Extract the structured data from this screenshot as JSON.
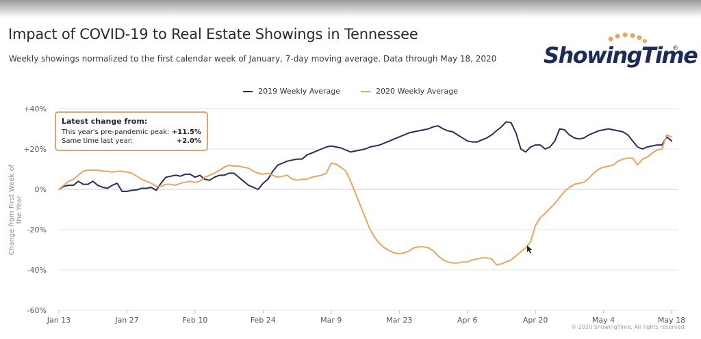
{
  "header": {
    "title": "Impact of COVID-19 to Real Estate Showings in Tennessee",
    "subtitle": "Weekly showings normalized to the first calendar week of January, 7-day moving average. Data through May 18, 2020",
    "logo_text": "ShowingTime",
    "logo_mark": "®"
  },
  "annotation": {
    "heading": "Latest change from:",
    "rows": [
      {
        "label": "This year's pre-pandemic peak:",
        "value": "+11.5%"
      },
      {
        "label": "Same time last year:",
        "value": "+2.0%"
      }
    ]
  },
  "footer": {
    "copyright": "© 2020 ShowingTime. All rights reserved."
  },
  "colors": {
    "series2019": "#2b2a5c",
    "series2020": "#e8a462",
    "grid": "#e3e3e3",
    "annotation_border": "#e2a36a"
  },
  "chart_data": {
    "type": "line",
    "title": "Impact of COVID-19 to Real Estate Showings in Tennessee",
    "xlabel": "",
    "ylabel": "Change from First Week of the Year",
    "ylim": [
      -60,
      40
    ],
    "y_ticks": [
      40,
      20,
      0,
      -20,
      -40,
      -60
    ],
    "y_tick_labels": [
      "+40%",
      "+20%",
      "0%",
      "-20%",
      "-40%",
      "-60%"
    ],
    "x_ticks": [
      "Jan 13",
      "Jan 27",
      "Feb 10",
      "Feb 24",
      "Mar 9",
      "Mar 23",
      "Apr 6",
      "Apr 20",
      "May 4",
      "May 18"
    ],
    "x_tick_days": [
      0,
      14,
      28,
      42,
      56,
      70,
      84,
      98,
      112,
      126
    ],
    "x_range_days": [
      0,
      126
    ],
    "grid": true,
    "legend_position": "top-center",
    "series": [
      {
        "name": "2019 Weekly Average",
        "points": [
          [
            0,
            0
          ],
          [
            1,
            1.5
          ],
          [
            2,
            2
          ],
          [
            3,
            2
          ],
          [
            4,
            4
          ],
          [
            5,
            2.5
          ],
          [
            6,
            2.5
          ],
          [
            7,
            4
          ],
          [
            8,
            2
          ],
          [
            9,
            1
          ],
          [
            10,
            0.5
          ],
          [
            11,
            2
          ],
          [
            12,
            3
          ],
          [
            13,
            -1
          ],
          [
            14,
            -1
          ],
          [
            15,
            -0.5
          ],
          [
            16,
            -0.3
          ],
          [
            17,
            0.5
          ],
          [
            18,
            0.5
          ],
          [
            19,
            1
          ],
          [
            20,
            -0.5
          ],
          [
            21,
            3
          ],
          [
            22,
            6
          ],
          [
            23,
            6.5
          ],
          [
            24,
            7
          ],
          [
            25,
            6.5
          ],
          [
            26,
            7.5
          ],
          [
            27,
            7.5
          ],
          [
            28,
            6
          ],
          [
            29,
            7
          ],
          [
            30,
            5
          ],
          [
            31,
            4.5
          ],
          [
            32,
            6
          ],
          [
            33,
            7
          ],
          [
            34,
            7
          ],
          [
            35,
            8
          ],
          [
            36,
            8
          ],
          [
            37,
            6
          ],
          [
            38,
            4
          ],
          [
            39,
            2
          ],
          [
            40,
            1
          ],
          [
            41,
            0
          ],
          [
            42,
            3
          ],
          [
            43,
            5
          ],
          [
            44,
            9
          ],
          [
            45,
            12
          ],
          [
            46,
            13
          ],
          [
            47,
            14
          ],
          [
            48,
            14.5
          ],
          [
            49,
            15
          ],
          [
            50,
            15
          ],
          [
            51,
            17
          ],
          [
            52,
            18
          ],
          [
            53,
            19
          ],
          [
            54,
            20
          ],
          [
            55,
            21
          ],
          [
            56,
            21.5
          ],
          [
            57,
            21
          ],
          [
            58,
            20.5
          ],
          [
            59,
            19.5
          ],
          [
            60,
            18.5
          ],
          [
            61,
            19
          ],
          [
            62,
            19.5
          ],
          [
            63,
            20
          ],
          [
            64,
            21
          ],
          [
            65,
            21.5
          ],
          [
            66,
            22
          ],
          [
            67,
            23
          ],
          [
            68,
            24
          ],
          [
            69,
            25
          ],
          [
            70,
            26
          ],
          [
            71,
            27
          ],
          [
            72,
            28
          ],
          [
            73,
            28.5
          ],
          [
            74,
            29
          ],
          [
            75,
            29.5
          ],
          [
            76,
            30
          ],
          [
            77,
            31
          ],
          [
            78,
            31.5
          ],
          [
            79,
            30
          ],
          [
            80,
            29
          ],
          [
            81,
            28.5
          ],
          [
            82,
            27
          ],
          [
            83,
            25.5
          ],
          [
            84,
            24
          ],
          [
            85,
            23.5
          ],
          [
            86,
            23.5
          ],
          [
            87,
            24.5
          ],
          [
            88,
            25.5
          ],
          [
            89,
            27
          ],
          [
            90,
            29
          ],
          [
            91,
            31
          ],
          [
            92,
            33.5
          ],
          [
            93,
            33
          ],
          [
            94,
            28
          ],
          [
            95,
            20
          ],
          [
            96,
            18.5
          ],
          [
            97,
            21
          ],
          [
            98,
            22
          ],
          [
            99,
            22
          ],
          [
            100,
            20
          ],
          [
            101,
            21
          ],
          [
            102,
            24
          ],
          [
            103,
            30
          ],
          [
            104,
            29.5
          ],
          [
            105,
            27
          ],
          [
            106,
            25.5
          ],
          [
            107,
            25
          ],
          [
            108,
            25.5
          ],
          [
            109,
            27
          ],
          [
            110,
            28
          ],
          [
            111,
            29
          ],
          [
            112,
            29.5
          ],
          [
            113,
            30
          ],
          [
            114,
            29.5
          ],
          [
            115,
            29
          ],
          [
            116,
            28.5
          ],
          [
            117,
            27
          ],
          [
            118,
            24
          ],
          [
            119,
            21
          ],
          [
            120,
            20
          ],
          [
            121,
            21
          ],
          [
            122,
            21.5
          ],
          [
            123,
            22
          ],
          [
            124,
            22
          ],
          [
            125,
            26
          ],
          [
            126,
            24
          ]
        ]
      },
      {
        "name": "2020 Weekly Average",
        "points": [
          [
            0,
            0
          ],
          [
            1,
            2
          ],
          [
            2,
            4
          ],
          [
            3,
            5
          ],
          [
            4,
            7
          ],
          [
            5,
            9
          ],
          [
            6,
            9.5
          ],
          [
            7,
            9.5
          ],
          [
            8,
            9.5
          ],
          [
            9,
            9
          ],
          [
            10,
            9
          ],
          [
            11,
            8.5
          ],
          [
            12,
            9
          ],
          [
            13,
            9
          ],
          [
            14,
            8.5
          ],
          [
            15,
            8
          ],
          [
            16,
            6.5
          ],
          [
            17,
            5
          ],
          [
            18,
            4
          ],
          [
            19,
            3
          ],
          [
            20,
            1.5
          ],
          [
            21,
            1.5
          ],
          [
            22,
            2.5
          ],
          [
            23,
            2.5
          ],
          [
            24,
            2
          ],
          [
            25,
            3
          ],
          [
            26,
            3.5
          ],
          [
            27,
            4
          ],
          [
            28,
            3.5
          ],
          [
            29,
            4
          ],
          [
            30,
            6
          ],
          [
            31,
            7
          ],
          [
            32,
            8
          ],
          [
            33,
            9.5
          ],
          [
            34,
            11
          ],
          [
            35,
            12
          ],
          [
            36,
            11.5
          ],
          [
            37,
            11.5
          ],
          [
            38,
            11
          ],
          [
            39,
            10.5
          ],
          [
            40,
            9
          ],
          [
            41,
            8
          ],
          [
            42,
            7.5
          ],
          [
            43,
            8
          ],
          [
            44,
            7
          ],
          [
            45,
            6
          ],
          [
            46,
            6.5
          ],
          [
            47,
            7
          ],
          [
            48,
            5
          ],
          [
            49,
            4.5
          ],
          [
            50,
            5
          ],
          [
            51,
            5
          ],
          [
            52,
            6
          ],
          [
            53,
            6.5
          ],
          [
            54,
            7
          ],
          [
            55,
            8
          ],
          [
            56,
            13
          ],
          [
            57,
            12.5
          ],
          [
            58,
            11
          ],
          [
            59,
            9
          ],
          [
            60,
            4
          ],
          [
            61,
            -2
          ],
          [
            62,
            -8
          ],
          [
            63,
            -14
          ],
          [
            64,
            -20
          ],
          [
            65,
            -24
          ],
          [
            66,
            -27
          ],
          [
            67,
            -29
          ],
          [
            68,
            -30.5
          ],
          [
            69,
            -31.5
          ],
          [
            70,
            -32
          ],
          [
            71,
            -31.5
          ],
          [
            72,
            -30.5
          ],
          [
            73,
            -29
          ],
          [
            74,
            -28.5
          ],
          [
            75,
            -28.5
          ],
          [
            76,
            -29
          ],
          [
            77,
            -30.5
          ],
          [
            78,
            -33
          ],
          [
            79,
            -35
          ],
          [
            80,
            -36
          ],
          [
            81,
            -36.5
          ],
          [
            82,
            -36.5
          ],
          [
            83,
            -36
          ],
          [
            84,
            -36
          ],
          [
            85,
            -35
          ],
          [
            86,
            -34.5
          ],
          [
            87,
            -34
          ],
          [
            88,
            -34
          ],
          [
            89,
            -34.5
          ],
          [
            90,
            -37.5
          ],
          [
            91,
            -37
          ],
          [
            92,
            -36
          ],
          [
            93,
            -35
          ],
          [
            94,
            -33
          ],
          [
            95,
            -31
          ],
          [
            96,
            -29
          ],
          [
            97,
            -26
          ],
          [
            98,
            -18
          ],
          [
            99,
            -14
          ],
          [
            100,
            -12
          ],
          [
            101,
            -9.5
          ],
          [
            102,
            -7
          ],
          [
            103,
            -4
          ],
          [
            104,
            -1
          ],
          [
            105,
            1
          ],
          [
            106,
            2.5
          ],
          [
            107,
            3
          ],
          [
            108,
            3.5
          ],
          [
            109,
            5.5
          ],
          [
            110,
            8
          ],
          [
            111,
            10
          ],
          [
            112,
            11
          ],
          [
            113,
            11.5
          ],
          [
            114,
            12
          ],
          [
            115,
            14
          ],
          [
            116,
            15
          ],
          [
            117,
            15.5
          ],
          [
            118,
            15.5
          ],
          [
            119,
            12
          ],
          [
            120,
            15
          ],
          [
            121,
            16
          ],
          [
            122,
            18
          ],
          [
            123,
            19.5
          ],
          [
            124,
            20
          ],
          [
            125,
            27
          ],
          [
            126,
            26
          ]
        ]
      }
    ]
  }
}
